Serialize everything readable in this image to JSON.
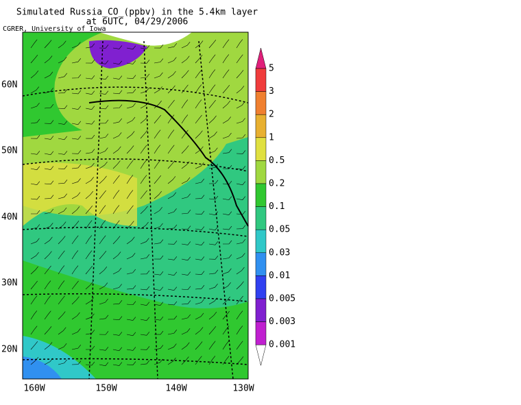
{
  "title": [
    "Simulated Russia_CO_(ppbv) in the 5.4km layer",
    "at 6UTC, 04/29/2006"
  ],
  "credit": "CGRER, University of Iowa",
  "lat_labels": [
    "60N",
    "50N",
    "40N",
    "30N",
    "20N"
  ],
  "lon_labels": [
    "160W",
    "150W",
    "140W",
    "130W"
  ],
  "colorbar": {
    "levels": [
      "5",
      "3",
      "2",
      "1",
      "0.5",
      "0.2",
      "0.1",
      "0.05",
      "0.03",
      "0.01",
      "0.005",
      "0.003",
      "0.001"
    ],
    "colors": [
      "#e0207a",
      "#f03c3c",
      "#f08030",
      "#e8b030",
      "#e0e040",
      "#a0d840",
      "#30c830",
      "#30c880",
      "#30c8c8",
      "#3090f0",
      "#3040f0",
      "#8020d0",
      "#c020d0",
      "#ffffff"
    ]
  }
}
